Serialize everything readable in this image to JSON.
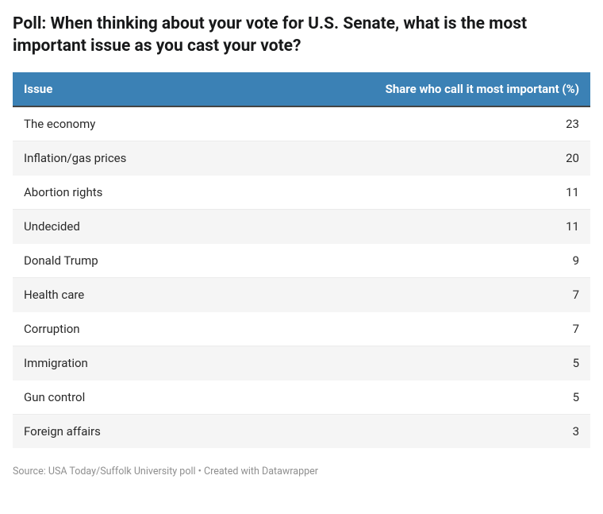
{
  "title": "Poll: When thinking about your vote for U.S. Senate, what is the most important issue as you cast your vote?",
  "table": {
    "type": "table",
    "header_bg": "#3b81b5",
    "header_text_color": "#ffffff",
    "row_bg_even": "#ffffff",
    "row_bg_odd": "#f5f5f5",
    "border_bottom_color": "#444444",
    "columns": [
      {
        "label": "Issue",
        "align": "left"
      },
      {
        "label": "Share who call it most important (%)",
        "align": "right"
      }
    ],
    "rows": [
      {
        "issue": "The economy",
        "value": 23
      },
      {
        "issue": "Inflation/gas prices",
        "value": 20
      },
      {
        "issue": "Abortion rights",
        "value": 11
      },
      {
        "issue": "Undecided",
        "value": 11
      },
      {
        "issue": "Donald Trump",
        "value": 9
      },
      {
        "issue": "Health care",
        "value": 7
      },
      {
        "issue": "Corruption",
        "value": 7
      },
      {
        "issue": "Immigration",
        "value": 5
      },
      {
        "issue": "Gun control",
        "value": 5
      },
      {
        "issue": "Foreign affairs",
        "value": 3
      }
    ]
  },
  "source": "Source: USA Today/Suffolk University poll • Created with Datawrapper"
}
